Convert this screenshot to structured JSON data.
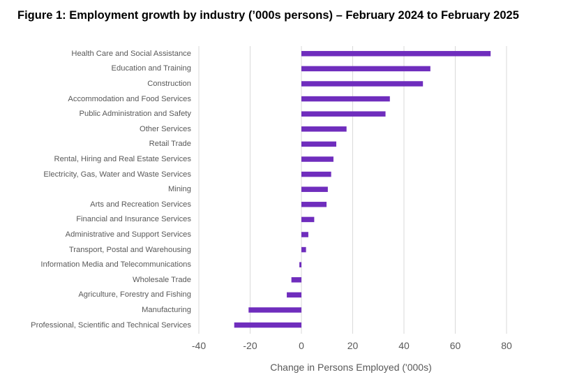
{
  "chart_data": {
    "type": "bar",
    "orientation": "horizontal",
    "title": "Figure 1: Employment growth by industry (’000s persons) – February 2024 to February 2025",
    "xlabel": "Change in Persons Employed ('000s)",
    "ylabel": "",
    "xlim": [
      -40,
      80
    ],
    "xticks": [
      -40,
      -20,
      0,
      20,
      40,
      60,
      80
    ],
    "grid": true,
    "legend": "none",
    "bar_color": "#6f2dbd",
    "categories": [
      "Health Care and Social Assistance",
      "Education and Training",
      "Construction",
      "Accommodation and Food Services",
      "Public Administration and Safety",
      "Other Services",
      "Retail Trade",
      "Rental, Hiring and Real Estate Services",
      "Electricity, Gas, Water and Waste Services",
      "Mining",
      "Arts and Recreation Services",
      "Financial and Insurance Services",
      "Administrative and Support Services",
      "Transport, Postal and Warehousing",
      "Information Media and Telecommunications",
      "Wholesale Trade",
      "Agriculture, Forestry and Fishing",
      "Manufacturing",
      "Professional, Scientific and Technical Services"
    ],
    "values": [
      73.8,
      50.3,
      47.4,
      34.5,
      32.8,
      17.6,
      13.6,
      12.5,
      11.6,
      10.3,
      9.8,
      5.0,
      2.7,
      1.8,
      -0.8,
      -3.9,
      -5.7,
      -20.6,
      -26.2
    ]
  }
}
